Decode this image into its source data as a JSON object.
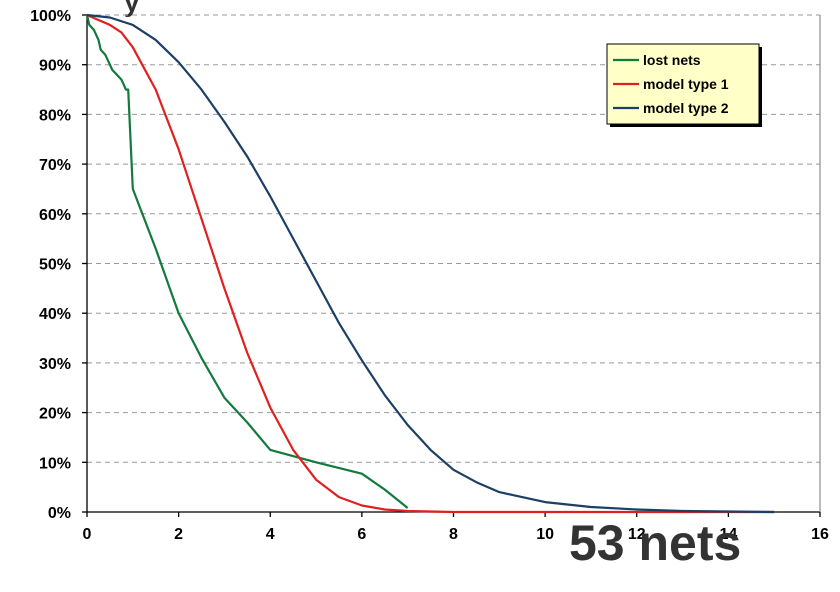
{
  "chart_data": {
    "type": "line",
    "title_fragment": "y",
    "xlim": [
      0,
      16
    ],
    "ylim": [
      0,
      100
    ],
    "x_ticks": [
      "0",
      "2",
      "4",
      "6",
      "8",
      "10",
      "12",
      "14",
      "16"
    ],
    "y_ticks": [
      "0%",
      "10%",
      "20%",
      "30%",
      "40%",
      "50%",
      "60%",
      "70%",
      "80%",
      "90%",
      "100%"
    ],
    "grid": "horizontal dashed",
    "legend_position": "top-right",
    "annotation": "53 nets",
    "series": [
      {
        "name": "lost nets",
        "color": "#127A3C",
        "points": [
          [
            0,
            100
          ],
          [
            0.05,
            98
          ],
          [
            0.15,
            97
          ],
          [
            0.25,
            95
          ],
          [
            0.3,
            93
          ],
          [
            0.4,
            92
          ],
          [
            0.45,
            91
          ],
          [
            0.55,
            89
          ],
          [
            0.65,
            88
          ],
          [
            0.75,
            87
          ],
          [
            0.8,
            86
          ],
          [
            0.85,
            85
          ],
          [
            0.9,
            85
          ],
          [
            1.0,
            65
          ],
          [
            1.5,
            53
          ],
          [
            2.0,
            40
          ],
          [
            2.5,
            31
          ],
          [
            3.0,
            23
          ],
          [
            3.5,
            18
          ],
          [
            4.0,
            12.5
          ],
          [
            5.0,
            10
          ],
          [
            6.0,
            7.7
          ],
          [
            6.5,
            4.5
          ],
          [
            7.0,
            0.8
          ]
        ]
      },
      {
        "name": "model type 1",
        "color": "#E02020",
        "points": [
          [
            0,
            100
          ],
          [
            0.25,
            99
          ],
          [
            0.5,
            98
          ],
          [
            0.75,
            96.5
          ],
          [
            1.0,
            93.5
          ],
          [
            1.5,
            85
          ],
          [
            2.0,
            73
          ],
          [
            2.5,
            59
          ],
          [
            3.0,
            45
          ],
          [
            3.5,
            32
          ],
          [
            4.0,
            21
          ],
          [
            4.5,
            12.5
          ],
          [
            5.0,
            6.5
          ],
          [
            5.5,
            3
          ],
          [
            6.0,
            1.3
          ],
          [
            6.5,
            0.5
          ],
          [
            7.0,
            0.2
          ],
          [
            8.0,
            0
          ],
          [
            10.0,
            0
          ],
          [
            12.0,
            0
          ],
          [
            14.0,
            0
          ],
          [
            15.0,
            0
          ]
        ]
      },
      {
        "name": "model type 2",
        "color": "#1C3F66",
        "points": [
          [
            0,
            100
          ],
          [
            0.5,
            99.5
          ],
          [
            1.0,
            98
          ],
          [
            1.5,
            95
          ],
          [
            2.0,
            90.5
          ],
          [
            2.5,
            85
          ],
          [
            3.0,
            78.5
          ],
          [
            3.5,
            71.5
          ],
          [
            4.0,
            63.5
          ],
          [
            4.5,
            55
          ],
          [
            5.0,
            46.5
          ],
          [
            5.5,
            38
          ],
          [
            6.0,
            30.5
          ],
          [
            6.5,
            23.5
          ],
          [
            7.0,
            17.5
          ],
          [
            7.5,
            12.5
          ],
          [
            8.0,
            8.5
          ],
          [
            8.5,
            6
          ],
          [
            9.0,
            4
          ],
          [
            10.0,
            2
          ],
          [
            11.0,
            1
          ],
          [
            12.0,
            0.5
          ],
          [
            13.0,
            0.2
          ],
          [
            14.0,
            0.1
          ],
          [
            15.0,
            0
          ]
        ]
      }
    ]
  }
}
